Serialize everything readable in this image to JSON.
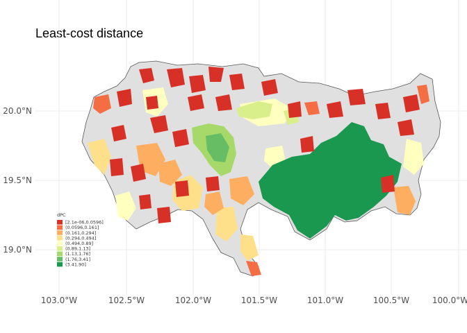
{
  "title": "Least-cost distance",
  "axes": {
    "x_ticks": [
      "103.0°W",
      "102.5°W",
      "102.0°W",
      "101.5°W",
      "101.0°W",
      "100.5°W",
      "100.0°W"
    ],
    "y_ticks": [
      "20.0°N",
      "19.5°N",
      "19.0°N"
    ]
  },
  "legend": {
    "title": "dPC",
    "items": [
      {
        "label": "[2.1e-06,0.0596]",
        "color": "#d73027"
      },
      {
        "label": "(0.0596,0.161]",
        "color": "#f46d43"
      },
      {
        "label": "(0.161,0.294]",
        "color": "#fdae61"
      },
      {
        "label": "(0.294,0.494]",
        "color": "#fee08b"
      },
      {
        "label": "(0.494,0.89]",
        "color": "#ffffbf"
      },
      {
        "label": "(0.89,1.13]",
        "color": "#d9ef8b"
      },
      {
        "label": "(1.13,1.76]",
        "color": "#a6d96a"
      },
      {
        "label": "(1.76,3.41]",
        "color": "#66bd63"
      },
      {
        "label": "(3.41,90]",
        "color": "#1a9850"
      }
    ]
  },
  "colors": {
    "region_fill": "#e0e0e0",
    "region_outline": "#555555",
    "grid": "#ebebeb",
    "background": "#ffffff"
  }
}
